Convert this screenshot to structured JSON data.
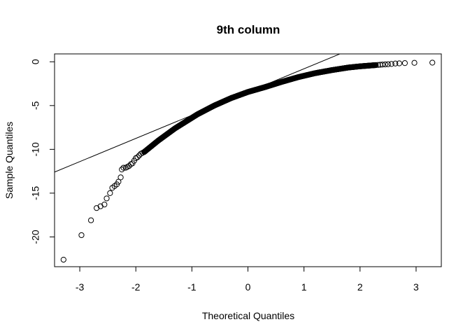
{
  "chart_data": {
    "type": "scatter",
    "subtype": "normal-qq-plot",
    "title": "9th column",
    "xlabel": "Theoretical Quantiles",
    "ylabel": "Sample Quantiles",
    "xlim": [
      -3.45,
      3.45
    ],
    "ylim": [
      -23.4,
      0.9
    ],
    "x_ticks": [
      -3,
      -2,
      -1,
      0,
      1,
      2,
      3
    ],
    "y_ticks": [
      -20,
      -15,
      -10,
      -5,
      0
    ],
    "reference_line": {
      "intercept": -3.45,
      "slope": 2.65
    },
    "series": [
      {
        "name": "sample",
        "marker": "open-circle",
        "points": [
          [
            -3.29,
            -22.6
          ],
          [
            -2.97,
            -19.8
          ],
          [
            -2.8,
            -18.1
          ],
          [
            -2.7,
            -16.7
          ],
          [
            -2.63,
            -16.5
          ],
          [
            -2.56,
            -16.3
          ],
          [
            -2.52,
            -15.6
          ],
          [
            -2.46,
            -15.0
          ],
          [
            -2.42,
            -14.4
          ],
          [
            -2.38,
            -14.2
          ],
          [
            -2.34,
            -14.0
          ],
          [
            -2.31,
            -13.7
          ],
          [
            -2.27,
            -13.2
          ],
          [
            -2.25,
            -12.3
          ],
          [
            -2.22,
            -12.1
          ],
          [
            -2.18,
            -12.1
          ],
          [
            -2.15,
            -12.0
          ],
          [
            -2.12,
            -11.9
          ],
          [
            -2.09,
            -11.7
          ],
          [
            -2.06,
            -11.6
          ],
          [
            -2.03,
            -11.3
          ],
          [
            -2.0,
            -11.0
          ],
          [
            -1.97,
            -10.9
          ],
          [
            -1.94,
            -10.7
          ],
          [
            -1.91,
            -10.5
          ],
          [
            -1.88,
            -10.4
          ],
          [
            -1.85,
            -10.3
          ],
          [
            3.29,
            -0.1
          ],
          [
            2.97,
            -0.12
          ],
          [
            2.8,
            -0.15
          ],
          [
            2.7,
            -0.18
          ],
          [
            2.63,
            -0.2
          ],
          [
            2.56,
            -0.25
          ],
          [
            2.5,
            -0.28
          ],
          [
            2.45,
            -0.3
          ],
          [
            2.4,
            -0.32
          ],
          [
            2.36,
            -0.34
          ],
          [
            2.32,
            -0.36
          ],
          [
            2.28,
            -0.38
          ]
        ],
        "bulk": {
          "x_range": [
            -1.85,
            2.28
          ],
          "count": 520,
          "knots": [
            [
              -1.85,
              -10.3
            ],
            [
              -1.6,
              -9.0
            ],
            [
              -1.3,
              -7.6
            ],
            [
              -1.05,
              -6.6
            ],
            [
              -0.9,
              -6.0
            ],
            [
              -0.6,
              -5.0
            ],
            [
              -0.3,
              -4.15
            ],
            [
              0.0,
              -3.45
            ],
            [
              0.3,
              -2.9
            ],
            [
              0.6,
              -2.3
            ],
            [
              0.9,
              -1.75
            ],
            [
              1.2,
              -1.3
            ],
            [
              1.5,
              -0.95
            ],
            [
              1.8,
              -0.65
            ],
            [
              2.0,
              -0.52
            ],
            [
              2.28,
              -0.38
            ]
          ]
        }
      }
    ]
  }
}
